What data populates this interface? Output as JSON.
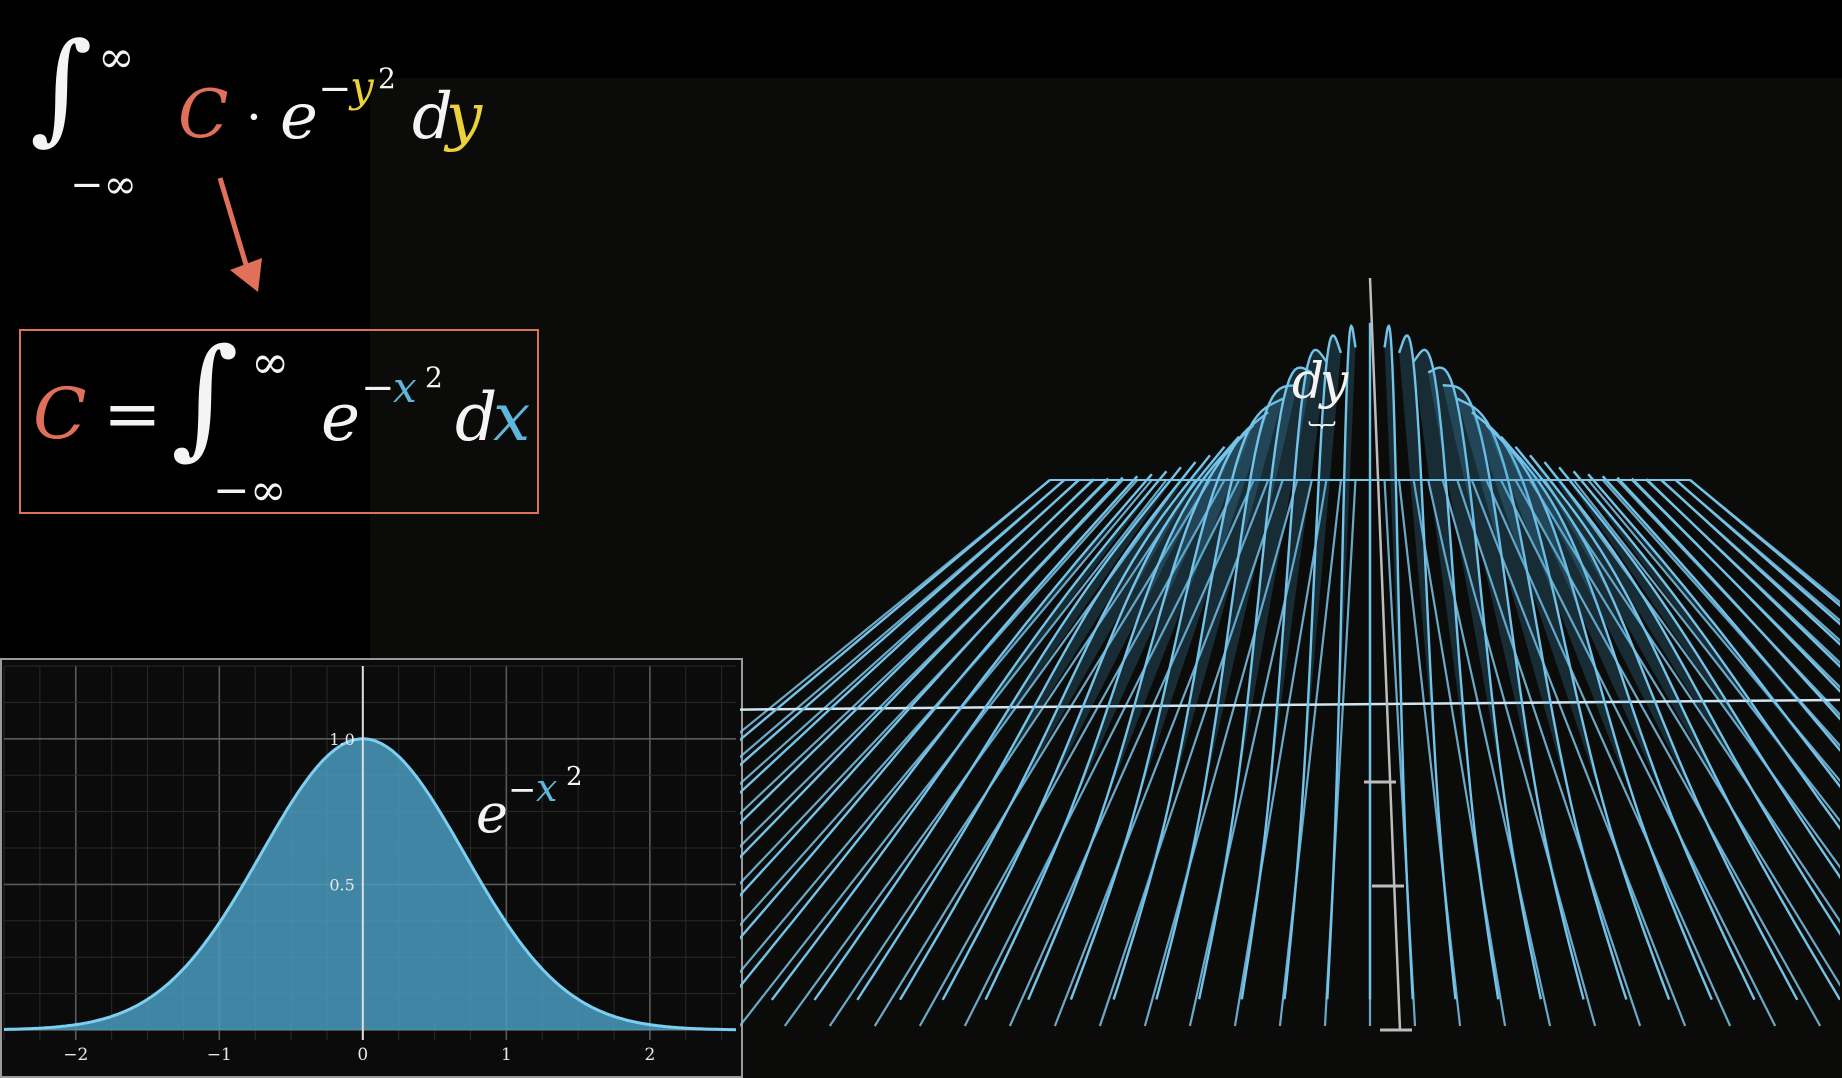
{
  "formulas": {
    "top": {
      "upper_limit": "∞",
      "lower_limit": "−∞",
      "coeff": "C",
      "dot": "·",
      "base": "e",
      "exp_sign": "−",
      "exp_var": "y",
      "exp_power": "2",
      "d": "d",
      "var": "y"
    },
    "boxed": {
      "lhs": "C",
      "equals": "=",
      "upper_limit": "∞",
      "lower_limit": "−∞",
      "base": "e",
      "exp_sign": "−",
      "exp_var": "x",
      "exp_power": "2",
      "d": "d",
      "var": "x"
    },
    "curve_label": {
      "base": "e",
      "exp_sign": "−",
      "exp_var": "x",
      "exp_power": "2"
    },
    "surface_label": {
      "d": "d",
      "var": "y"
    }
  },
  "colors": {
    "red": "#e0705a",
    "yellow": "#ecd03c",
    "blue": "#5fb6dc",
    "fill": "#4a9cc0"
  },
  "chart_data": [
    {
      "type": "area",
      "function": "e^(-x^2)",
      "xlim": [
        -2.5,
        2.6
      ],
      "ylim": [
        0,
        1.25
      ],
      "x_ticks": [
        -2,
        -1,
        0,
        1,
        2
      ],
      "x_tick_labels": [
        "−2",
        "−1",
        "0",
        "1",
        "2"
      ],
      "y_ticks": [
        0.5,
        1.0
      ],
      "y_tick_labels": [
        "0.5",
        "1.0"
      ],
      "grid": true,
      "series": [
        {
          "x": [
            -2.5,
            -2.25,
            -2.0,
            -1.75,
            -1.5,
            -1.25,
            -1.0,
            -0.75,
            -0.5,
            -0.25,
            0,
            0.25,
            0.5,
            0.75,
            1.0,
            1.25,
            1.5,
            1.75,
            2.0,
            2.25,
            2.5
          ],
          "values": [
            0.002,
            0.006,
            0.018,
            0.047,
            0.105,
            0.21,
            0.368,
            0.57,
            0.779,
            0.939,
            1.0,
            0.939,
            0.779,
            0.57,
            0.368,
            0.21,
            0.105,
            0.047,
            0.018,
            0.006,
            0.002
          ]
        }
      ]
    },
    {
      "type": "surface",
      "function": "e^(-x^2) · e^(-y^2)",
      "slices": "dy"
    }
  ]
}
